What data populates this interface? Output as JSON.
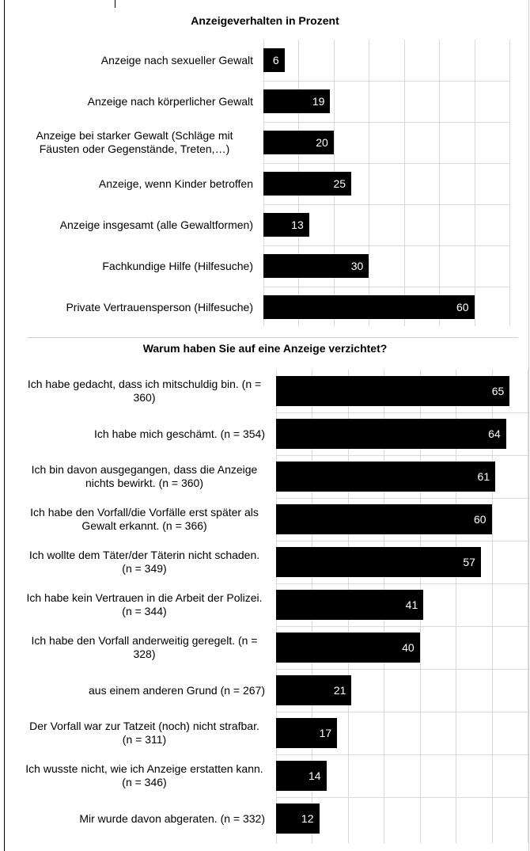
{
  "chart_data": [
    {
      "type": "barh",
      "title": "Anzeigeverhalten in Prozent",
      "categories": [
        "Anzeige nach sexueller Gewalt",
        "Anzeige nach körperlicher Gewalt",
        "Anzeige bei starker Gewalt (Schläge mit Fäusten oder Gegenstände, Treten,…)",
        "Anzeige, wenn Kinder betroffen",
        "Anzeige insgesamt (alle Gewaltformen)",
        "Fachkundige Hilfe (Hilfesuche)",
        "Private Vertrauensperson (Hilfesuche)"
      ],
      "values": [
        6,
        19,
        20,
        25,
        13,
        30,
        60
      ],
      "color": "#000000",
      "xlim": [
        0,
        70
      ],
      "xticks": [
        0,
        10,
        20,
        30,
        40,
        50,
        60,
        70
      ],
      "grid": true
    },
    {
      "type": "barh",
      "title": "Warum haben Sie auf eine Anzeige verzichtet?",
      "categories": [
        "Ich habe gedacht, dass ich mitschuldig bin. (n = 360)",
        "Ich habe mich geschämt. (n = 354)",
        "Ich bin davon ausgegangen, dass die Anzeige nichts bewirkt. (n = 360)",
        "Ich habe den Vorfall/die Vorfälle erst später als Gewalt erkannt. (n = 366)",
        "Ich wollte dem Täter/der Täterin nicht schaden. (n = 349)",
        "Ich habe kein Vertrauen in die Arbeit der Polizei. (n = 344)",
        "Ich habe den Vorfall anderweitig geregelt. (n = 328)",
        "aus einem anderen Grund (n = 267)",
        "Der Vorfall war zur Tatzeit (noch) nicht strafbar. (n = 311)",
        "Ich wusste nicht, wie ich Anzeige erstatten kann. (n = 346)",
        "Mir wurde davon abgeraten. (n = 332)"
      ],
      "values": [
        65,
        64,
        61,
        60,
        57,
        41,
        40,
        21,
        17,
        14,
        12
      ],
      "color": "#000000",
      "xlim": [
        0,
        70
      ],
      "xticks": [
        0,
        10,
        20,
        30,
        40,
        50,
        60,
        70
      ],
      "grid": true
    }
  ]
}
